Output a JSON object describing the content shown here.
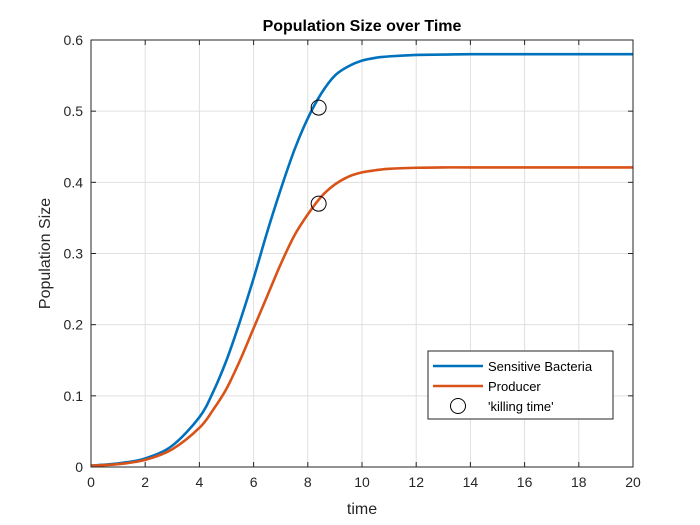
{
  "chart_data": {
    "type": "line",
    "title": "Population Size over Time",
    "xlabel": "time",
    "ylabel": "Population Size",
    "xlim": [
      0,
      20
    ],
    "ylim": [
      0,
      0.6
    ],
    "xticks": [
      0,
      2,
      4,
      6,
      8,
      10,
      12,
      14,
      16,
      18,
      20
    ],
    "yticks": [
      0,
      0.1,
      0.2,
      0.3,
      0.4,
      0.5,
      0.6
    ],
    "grid": true,
    "legend_location": "bottom-right",
    "series": [
      {
        "name": "Sensitive Bacteria",
        "color": "#0072BD",
        "x": [
          0,
          1,
          2,
          3,
          4,
          4.5,
          5,
          5.5,
          6,
          6.5,
          7,
          7.5,
          8,
          8.5,
          9,
          9.5,
          10,
          10.5,
          11,
          12,
          13,
          14,
          16,
          18,
          20
        ],
        "y": [
          0.002,
          0.005,
          0.012,
          0.03,
          0.07,
          0.105,
          0.15,
          0.205,
          0.265,
          0.33,
          0.39,
          0.445,
          0.49,
          0.525,
          0.55,
          0.563,
          0.571,
          0.575,
          0.577,
          0.579,
          0.5795,
          0.58,
          0.58,
          0.58,
          0.58
        ]
      },
      {
        "name": "Producer",
        "color": "#D95319",
        "x": [
          0,
          1,
          2,
          3,
          4,
          4.5,
          5,
          5.5,
          6,
          6.5,
          7,
          7.5,
          8,
          8.5,
          9,
          9.5,
          10,
          10.5,
          11,
          12,
          13,
          14,
          16,
          18,
          20
        ],
        "y": [
          0.002,
          0.004,
          0.01,
          0.025,
          0.055,
          0.08,
          0.11,
          0.15,
          0.195,
          0.24,
          0.285,
          0.325,
          0.355,
          0.38,
          0.397,
          0.408,
          0.414,
          0.417,
          0.419,
          0.4205,
          0.421,
          0.421,
          0.421,
          0.421,
          0.421
        ]
      }
    ],
    "markers": {
      "name": "'killing time'",
      "symbol": "circle",
      "color": "#000000",
      "points": [
        {
          "x": 8.4,
          "y": 0.505
        },
        {
          "x": 8.4,
          "y": 0.37
        }
      ]
    }
  }
}
